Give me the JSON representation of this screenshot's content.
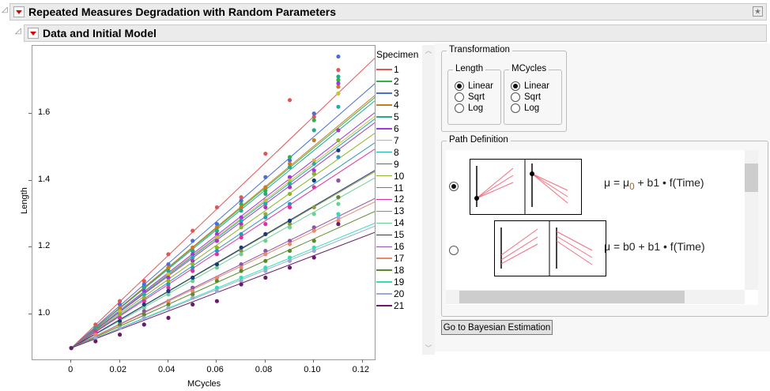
{
  "header": {
    "title": "Repeated Measures Degradation with Random Parameters",
    "subtitle": "Data and Initial Model"
  },
  "transformation": {
    "title": "Transformation",
    "length": {
      "title": "Length",
      "options": [
        "Linear",
        "Sqrt",
        "Log"
      ],
      "selected": "Linear"
    },
    "mcycles": {
      "title": "MCycles",
      "options": [
        "Linear",
        "Sqrt",
        "Log"
      ],
      "selected": "Linear"
    }
  },
  "path_definition": {
    "title": "Path Definition",
    "options": [
      {
        "formula_a": "μ = μ",
        "formula_sub": "0",
        "formula_b": "+ b1 • f(Time)",
        "selected": true
      },
      {
        "formula_a": "μ = b0 + b1 • f(Time)",
        "selected": false
      }
    ],
    "accent": "#f07080"
  },
  "bayes_button": "Go to Bayesian Estimation",
  "chart_data": {
    "type": "scatter",
    "xlabel": "MCycles",
    "ylabel": "Length",
    "xlim": [
      -0.016,
      0.125
    ],
    "ylim": [
      0.866,
      1.802
    ],
    "xticks": [
      0,
      0.02,
      0.04,
      0.06,
      0.08,
      0.1,
      0.12
    ],
    "xtick_labels": [
      "0",
      "0.02",
      "0.04",
      "0.06",
      "0.08",
      "0.10",
      "0.12"
    ],
    "yticks": [
      1.0,
      1.2,
      1.4,
      1.6
    ],
    "ytick_labels": [
      "1.0",
      "1.2",
      "1.4",
      "1.6"
    ],
    "legend_title": "Specimen",
    "legend_position": "right",
    "x": [
      0,
      0.01,
      0.02,
      0.03,
      0.04,
      0.05,
      0.06,
      0.07,
      0.08,
      0.09,
      0.1,
      0.11
    ],
    "intercept": 0.9,
    "series": [
      {
        "name": "1",
        "color": "#e0575a",
        "slope": 6.92,
        "y": [
          0.9,
          0.97,
          1.04,
          1.1,
          1.18,
          1.25,
          1.32,
          1.35,
          1.48,
          1.64,
          1.59,
          1.73
        ]
      },
      {
        "name": "2",
        "color": "#2db34a",
        "slope": 5.98,
        "y": [
          0.9,
          0.96,
          1.02,
          1.08,
          1.14,
          1.19,
          1.26,
          1.33,
          1.37,
          1.47,
          1.58,
          1.7
        ]
      },
      {
        "name": "3",
        "color": "#4a70d8",
        "slope": 6.31,
        "y": [
          0.9,
          0.96,
          1.03,
          1.09,
          1.15,
          1.22,
          1.27,
          1.34,
          1.41,
          1.46,
          1.6,
          1.77
        ]
      },
      {
        "name": "4",
        "color": "#d07a20",
        "slope": 6.03,
        "y": [
          0.9,
          0.96,
          1.02,
          1.08,
          1.14,
          1.2,
          1.26,
          1.32,
          1.38,
          1.45,
          1.52,
          1.68
        ]
      },
      {
        "name": "5",
        "color": "#26a88a",
        "slope": 5.9,
        "y": [
          0.9,
          0.96,
          1.01,
          1.08,
          1.13,
          1.19,
          1.25,
          1.31,
          1.36,
          1.44,
          1.55,
          1.71
        ]
      },
      {
        "name": "6",
        "color": "#a535e0",
        "slope": 5.62,
        "y": [
          0.9,
          0.95,
          1.01,
          1.07,
          1.12,
          1.18,
          1.24,
          1.29,
          1.34,
          1.41,
          1.43,
          1.69
        ]
      },
      {
        "name": "7",
        "color": "#c8bf3a",
        "slope": 5.53,
        "y": [
          0.9,
          0.95,
          1.01,
          1.06,
          1.12,
          1.17,
          1.23,
          1.28,
          1.34,
          1.4,
          1.46,
          1.66
        ]
      },
      {
        "name": "8",
        "color": "#1fadb0",
        "slope": 5.47,
        "y": [
          0.9,
          0.95,
          1.0,
          1.06,
          1.11,
          1.17,
          1.22,
          1.28,
          1.33,
          1.39,
          1.45,
          1.62
        ]
      },
      {
        "name": "9",
        "color": "#a838b8",
        "slope": 5.38,
        "y": [
          0.9,
          0.95,
          1.0,
          1.05,
          1.11,
          1.16,
          1.22,
          1.27,
          1.32,
          1.38,
          1.42,
          1.55
        ]
      },
      {
        "name": "10",
        "color": "#8db42a",
        "slope": 5.13,
        "y": [
          0.9,
          0.95,
          1.0,
          1.05,
          1.1,
          1.15,
          1.2,
          1.26,
          1.3,
          1.36,
          1.42,
          1.52
        ]
      },
      {
        "name": "11",
        "color": "#2f94c0",
        "slope": 4.9,
        "y": [
          0.9,
          0.95,
          0.99,
          1.04,
          1.09,
          1.14,
          1.19,
          1.24,
          1.29,
          1.33,
          1.4,
          1.47
        ]
      },
      {
        "name": "12",
        "color": "#e030a0",
        "slope": 4.75,
        "y": [
          0.9,
          0.95,
          0.99,
          1.04,
          1.08,
          1.13,
          1.18,
          1.23,
          1.27,
          1.32,
          1.38,
          1.4
        ]
      },
      {
        "name": "13",
        "color": "#8a9a40",
        "slope": 4.21,
        "y": [
          0.9,
          0.94,
          0.98,
          1.03,
          1.07,
          1.11,
          1.15,
          1.19,
          1.24,
          1.27,
          1.32,
          1.35
        ]
      },
      {
        "name": "14",
        "color": "#6ccf98",
        "slope": 4.06,
        "y": [
          0.9,
          0.94,
          0.98,
          1.02,
          1.06,
          1.1,
          1.14,
          1.18,
          1.22,
          1.26,
          1.3,
          1.33
        ]
      },
      {
        "name": "15",
        "color": "#1a3a7a",
        "slope": 4.24,
        "y": [
          0.9,
          0.94,
          0.98,
          1.03,
          1.07,
          1.11,
          1.15,
          1.2,
          1.24,
          1.28,
          1.4,
          1.49
        ]
      },
      {
        "name": "16",
        "color": "#8e54a8",
        "slope": 3.57,
        "y": [
          0.9,
          0.94,
          0.97,
          1.01,
          1.04,
          1.08,
          1.11,
          1.15,
          1.19,
          1.22,
          1.26,
          1.4
        ]
      },
      {
        "name": "17",
        "color": "#e88a6a",
        "slope": 3.49,
        "y": [
          0.9,
          0.94,
          0.97,
          1.0,
          1.04,
          1.07,
          1.11,
          1.14,
          1.18,
          1.21,
          1.25,
          1.28
        ]
      },
      {
        "name": "18",
        "color": "#5a8a2a",
        "slope": 3.26,
        "y": [
          0.9,
          0.93,
          0.97,
          1.0,
          1.03,
          1.06,
          1.1,
          1.13,
          1.16,
          1.19,
          1.22,
          1.35
        ]
      },
      {
        "name": "19",
        "color": "#30e0b0",
        "slope": 2.98,
        "y": [
          0.9,
          0.93,
          0.96,
          0.99,
          1.02,
          1.05,
          1.08,
          1.11,
          1.14,
          1.17,
          1.2,
          1.3
        ]
      },
      {
        "name": "20",
        "color": "#a0a8d8",
        "slope": 2.91,
        "y": [
          0.9,
          0.93,
          0.96,
          0.99,
          1.02,
          1.05,
          1.07,
          1.1,
          1.13,
          1.16,
          1.19,
          1.29
        ]
      },
      {
        "name": "21",
        "color": "#6a1a6a",
        "slope": 2.76,
        "y": [
          0.9,
          0.92,
          0.94,
          0.97,
          0.99,
          1.03,
          1.04,
          1.09,
          1.11,
          1.14,
          1.17,
          1.27
        ]
      }
    ]
  }
}
